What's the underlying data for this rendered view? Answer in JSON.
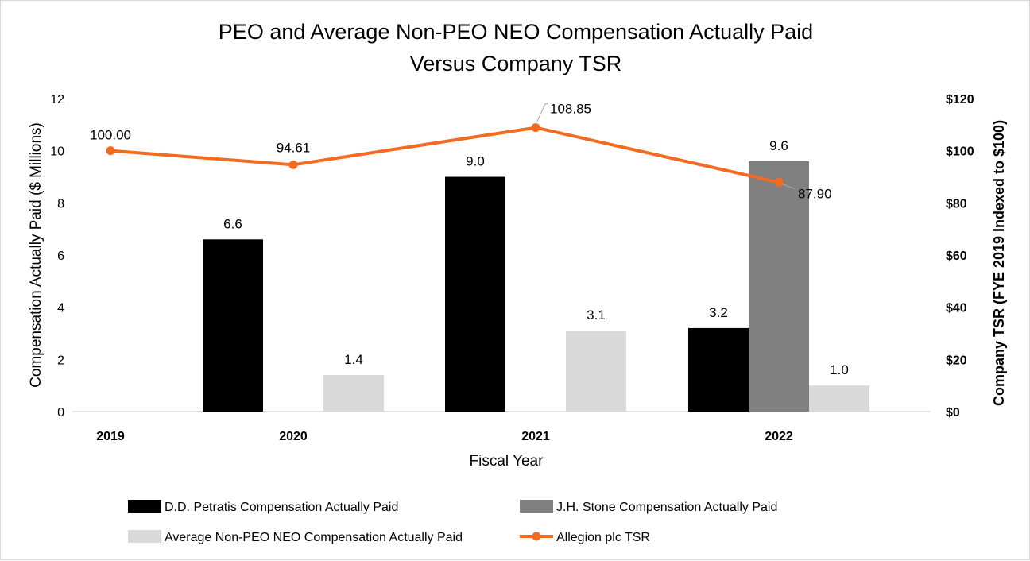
{
  "chart_data": {
    "type": "bar",
    "title_lines": [
      "PEO and Average Non-PEO NEO Compensation Actually Paid",
      "Versus Company TSR"
    ],
    "xlabel": "Fiscal Year",
    "ylabel": "Compensation Actually Paid ($ Millions)",
    "y2label": "Company TSR (FYE 2019 Indexed to $100)",
    "categories": [
      "2019",
      "2020",
      "2021",
      "2022"
    ],
    "ylim": [
      0,
      12
    ],
    "yticks": [
      "0",
      "2",
      "4",
      "6",
      "8",
      "10",
      "12"
    ],
    "y2lim": [
      0,
      120
    ],
    "y2ticks": [
      "$0",
      "$20",
      "$40",
      "$60",
      "$80",
      "$100",
      "$120"
    ],
    "series": [
      {
        "name": "D.D. Petratis Compensation Actually Paid",
        "type": "bar",
        "color": "#000000",
        "values": [
          null,
          6.6,
          9.0,
          3.2
        ],
        "labels": [
          "",
          "6.6",
          "9.0",
          "3.2"
        ]
      },
      {
        "name": "J.H. Stone Compensation Actually Paid",
        "type": "bar",
        "color": "#808080",
        "values": [
          null,
          null,
          null,
          9.6
        ],
        "labels": [
          "",
          "",
          "",
          "9.6"
        ]
      },
      {
        "name": "Average Non-PEO NEO Compensation Actually Paid",
        "type": "bar",
        "color": "#d9d9d9",
        "values": [
          null,
          1.4,
          3.1,
          1.0
        ],
        "labels": [
          "",
          "1.4",
          "3.1",
          "1.0"
        ]
      },
      {
        "name": "Allegion plc TSR",
        "type": "line",
        "axis": "right",
        "color": "#f26b21",
        "values": [
          100.0,
          94.61,
          108.85,
          87.9
        ],
        "labels": [
          "100.00",
          "94.61",
          "108.85",
          "87.90"
        ]
      }
    ],
    "legend_position": "bottom"
  }
}
